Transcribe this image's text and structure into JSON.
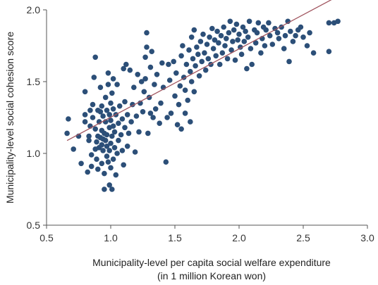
{
  "chart_data": {
    "type": "scatter",
    "title": "",
    "xlabel": [
      "Municipality-level per capita social welfare expenditure",
      "(in 1 million Korean won)"
    ],
    "ylabel": "Municipality-level social cohesion score",
    "xlim": [
      0.5,
      3.0
    ],
    "ylim": [
      0.5,
      2.0
    ],
    "xticks": [
      "0.5",
      "1.0",
      "1.5",
      "2.0",
      "2.5",
      "3.0"
    ],
    "yticks": [
      "0.5",
      "1.0",
      "1.5",
      "2.0"
    ],
    "grid": false,
    "legend": "none",
    "point_color": "#2c4f78",
    "trendline_color": "#a0545e",
    "trendline": [
      [
        0.66,
        1.09
      ],
      [
        2.76,
        2.09
      ]
    ],
    "points": [
      [
        0.66,
        1.14
      ],
      [
        0.67,
        1.24
      ],
      [
        0.71,
        1.03
      ],
      [
        0.75,
        1.12
      ],
      [
        0.77,
        0.93
      ],
      [
        0.8,
        1.22
      ],
      [
        0.8,
        1.27
      ],
      [
        0.8,
        1.43
      ],
      [
        0.82,
        0.87
      ],
      [
        0.83,
        1.09
      ],
      [
        0.83,
        1.12
      ],
      [
        0.84,
        1.19
      ],
      [
        0.84,
        1.3
      ],
      [
        0.85,
        0.99
      ],
      [
        0.85,
        0.91
      ],
      [
        0.86,
        1.25
      ],
      [
        0.86,
        1.34
      ],
      [
        0.87,
        1.53
      ],
      [
        0.88,
        1.67
      ],
      [
        0.88,
        1.03
      ],
      [
        0.88,
        1.17
      ],
      [
        0.89,
        1.08
      ],
      [
        0.89,
        0.96
      ],
      [
        0.9,
        0.89
      ],
      [
        0.9,
        1.12
      ],
      [
        0.9,
        1.3
      ],
      [
        0.91,
        1.04
      ],
      [
        0.91,
        1.22
      ],
      [
        0.92,
        1.11
      ],
      [
        0.92,
        1.29
      ],
      [
        0.92,
        1.46
      ],
      [
        0.93,
        0.93
      ],
      [
        0.93,
        1.06
      ],
      [
        0.93,
        1.16
      ],
      [
        0.93,
        1.33
      ],
      [
        0.94,
        1.02
      ],
      [
        0.94,
        1.1
      ],
      [
        0.94,
        1.26
      ],
      [
        0.95,
        0.75
      ],
      [
        0.95,
        0.86
      ],
      [
        0.95,
        1.14
      ],
      [
        0.96,
        1.09
      ],
      [
        0.96,
        1.22
      ],
      [
        0.96,
        1.39
      ],
      [
        0.97,
        0.98
      ],
      [
        0.97,
        1.05
      ],
      [
        0.97,
        1.13
      ],
      [
        0.97,
        1.3
      ],
      [
        0.98,
        1.48
      ],
      [
        0.98,
        1.56
      ],
      [
        0.98,
        0.94
      ],
      [
        0.99,
        0.78
      ],
      [
        0.99,
        1.02
      ],
      [
        0.99,
        1.18
      ],
      [
        0.99,
        1.27
      ],
      [
        1.0,
        0.9
      ],
      [
        1.0,
        1.07
      ],
      [
        1.0,
        1.23
      ],
      [
        1.0,
        1.35
      ],
      [
        1.01,
        0.75
      ],
      [
        1.01,
        1.12
      ],
      [
        1.01,
        1.42
      ],
      [
        1.02,
        0.96
      ],
      [
        1.02,
        1.19
      ],
      [
        1.02,
        1.31
      ],
      [
        1.02,
        1.52
      ],
      [
        1.03,
        1.04
      ],
      [
        1.03,
        1.15
      ],
      [
        1.04,
        0.85
      ],
      [
        1.04,
        1.27
      ],
      [
        1.05,
        1.0
      ],
      [
        1.05,
        1.48
      ],
      [
        1.06,
        1.09
      ],
      [
        1.06,
        1.21
      ],
      [
        1.07,
        1.33
      ],
      [
        1.08,
        1.13
      ],
      [
        1.09,
        1.02
      ],
      [
        1.09,
        1.24
      ],
      [
        1.1,
        0.92
      ],
      [
        1.1,
        1.59
      ],
      [
        1.11,
        1.18
      ],
      [
        1.11,
        1.36
      ],
      [
        1.12,
        1.62
      ],
      [
        1.13,
        1.05
      ],
      [
        1.13,
        1.27
      ],
      [
        1.14,
        1.14
      ],
      [
        1.15,
        1.58
      ],
      [
        1.16,
        1.22
      ],
      [
        1.17,
        1.34
      ],
      [
        1.18,
        1.46
      ],
      [
        1.19,
        1.01
      ],
      [
        1.2,
        1.26
      ],
      [
        1.21,
        1.55
      ],
      [
        1.22,
        1.15
      ],
      [
        1.23,
        1.35
      ],
      [
        1.24,
        1.5
      ],
      [
        1.25,
        1.29
      ],
      [
        1.26,
        1.43
      ],
      [
        1.27,
        1.67
      ],
      [
        1.27,
        1.52
      ],
      [
        1.28,
        1.74
      ],
      [
        1.28,
        1.84
      ],
      [
        1.29,
        1.14
      ],
      [
        1.3,
        1.39
      ],
      [
        1.31,
        1.28
      ],
      [
        1.31,
        1.6
      ],
      [
        1.32,
        1.71
      ],
      [
        1.33,
        1.25
      ],
      [
        1.34,
        1.48
      ],
      [
        1.35,
        1.31
      ],
      [
        1.36,
        1.55
      ],
      [
        1.38,
        1.21
      ],
      [
        1.39,
        1.35
      ],
      [
        1.4,
        1.63
      ],
      [
        1.41,
        1.46
      ],
      [
        1.43,
        0.94
      ],
      [
        1.44,
        1.25
      ],
      [
        1.45,
        1.62
      ],
      [
        1.46,
        1.51
      ],
      [
        1.47,
        1.28
      ],
      [
        1.49,
        1.64
      ],
      [
        1.5,
        1.4
      ],
      [
        1.51,
        1.56
      ],
      [
        1.52,
        1.2
      ],
      [
        1.53,
        1.34
      ],
      [
        1.54,
        1.47
      ],
      [
        1.55,
        1.17
      ],
      [
        1.55,
        1.68
      ],
      [
        1.56,
        1.75
      ],
      [
        1.57,
        1.53
      ],
      [
        1.58,
        1.28
      ],
      [
        1.58,
        1.44
      ],
      [
        1.59,
        1.62
      ],
      [
        1.6,
        1.37
      ],
      [
        1.61,
        1.72
      ],
      [
        1.62,
        1.22
      ],
      [
        1.62,
        1.57
      ],
      [
        1.63,
        1.81
      ],
      [
        1.63,
        1.5
      ],
      [
        1.64,
        1.66
      ],
      [
        1.65,
        1.86
      ],
      [
        1.65,
        1.43
      ],
      [
        1.66,
        1.61
      ],
      [
        1.67,
        1.74
      ],
      [
        1.68,
        1.69
      ],
      [
        1.69,
        1.54
      ],
      [
        1.7,
        1.78
      ],
      [
        1.71,
        1.64
      ],
      [
        1.72,
        1.83
      ],
      [
        1.73,
        1.7
      ],
      [
        1.74,
        1.58
      ],
      [
        1.75,
        1.76
      ],
      [
        1.76,
        1.66
      ],
      [
        1.77,
        1.81
      ],
      [
        1.78,
        1.62
      ],
      [
        1.79,
        1.87
      ],
      [
        1.8,
        1.73
      ],
      [
        1.81,
        1.79
      ],
      [
        1.82,
        1.68
      ],
      [
        1.83,
        1.85
      ],
      [
        1.84,
        1.77
      ],
      [
        1.85,
        1.62
      ],
      [
        1.86,
        1.82
      ],
      [
        1.87,
        1.7
      ],
      [
        1.88,
        1.88
      ],
      [
        1.89,
        1.75
      ],
      [
        1.9,
        1.8
      ],
      [
        1.91,
        1.66
      ],
      [
        1.92,
        1.84
      ],
      [
        1.93,
        1.92
      ],
      [
        1.94,
        1.72
      ],
      [
        1.95,
        1.78
      ],
      [
        1.96,
        1.86
      ],
      [
        1.97,
        1.65
      ],
      [
        1.98,
        1.9
      ],
      [
        1.99,
        1.79
      ],
      [
        2.0,
        1.83
      ],
      [
        2.01,
        1.74
      ],
      [
        2.02,
        1.69
      ],
      [
        2.03,
        1.88
      ],
      [
        2.04,
        1.78
      ],
      [
        2.05,
        1.85
      ],
      [
        2.06,
        1.59
      ],
      [
        2.07,
        1.81
      ],
      [
        2.08,
        1.92
      ],
      [
        2.09,
        1.73
      ],
      [
        2.1,
        1.62
      ],
      [
        2.12,
        1.86
      ],
      [
        2.13,
        1.77
      ],
      [
        2.14,
        1.84
      ],
      [
        2.15,
        1.91
      ],
      [
        2.17,
        1.7
      ],
      [
        2.18,
        1.8
      ],
      [
        2.19,
        1.88
      ],
      [
        2.2,
        1.75
      ],
      [
        2.21,
        1.86
      ],
      [
        2.23,
        1.91
      ],
      [
        2.24,
        1.82
      ],
      [
        2.26,
        1.76
      ],
      [
        2.28,
        1.87
      ],
      [
        2.3,
        1.84
      ],
      [
        2.31,
        1.8
      ],
      [
        2.33,
        1.88
      ],
      [
        2.35,
        1.73
      ],
      [
        2.36,
        1.82
      ],
      [
        2.38,
        1.92
      ],
      [
        2.39,
        1.64
      ],
      [
        2.4,
        1.85
      ],
      [
        2.42,
        1.78
      ],
      [
        2.44,
        1.82
      ],
      [
        2.46,
        1.86
      ],
      [
        2.48,
        1.88
      ],
      [
        2.5,
        1.81
      ],
      [
        2.53,
        1.75
      ],
      [
        2.55,
        1.84
      ],
      [
        2.58,
        1.7
      ],
      [
        2.7,
        1.71
      ],
      [
        2.7,
        1.91
      ],
      [
        2.74,
        1.91
      ],
      [
        2.77,
        1.92
      ]
    ]
  }
}
